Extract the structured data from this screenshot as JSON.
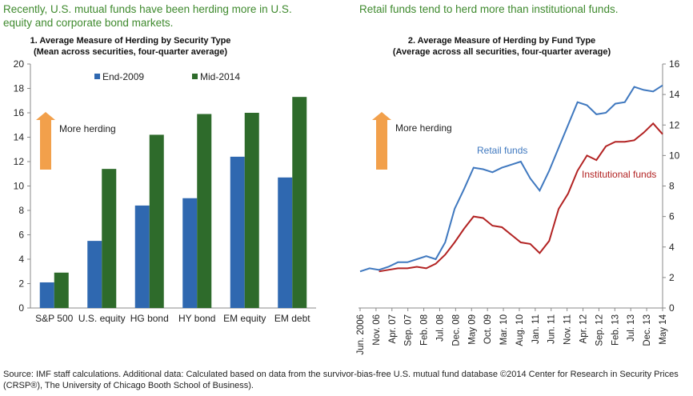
{
  "left_headline": "Recently, U.S. mutual funds have been herding more in U.S. equity and corporate bond markets.",
  "right_headline": "Retail funds tend to herd more than institutional funds.",
  "footer": "Source: IMF staff calculations. Additional data: Calculated based on data from the survivor-bias-free U.S. mutual fund database ©2014 Center for Research in Security Prices (CRSP®), The University of Chicago Booth School of Business).",
  "colors": {
    "end2009": "#2f68b0",
    "mid2014": "#2e6b2b",
    "retail": "#3f78bf",
    "institutional": "#b22222",
    "arrow": "#f2a04b",
    "headline": "#3f8a2e"
  },
  "chart_data": [
    {
      "type": "bar",
      "title": "1. Average Measure of Herding by Security Type",
      "subtitle": "(Mean across securities, four-quarter average)",
      "categories": [
        "S&P 500",
        "U.S. equity",
        "HG bond",
        "HY bond",
        "EM equity",
        "EM debt"
      ],
      "series": [
        {
          "name": "End-2009",
          "values": [
            2.1,
            5.5,
            8.4,
            9.0,
            12.4,
            10.7
          ]
        },
        {
          "name": "Mid-2014",
          "values": [
            2.9,
            11.4,
            14.2,
            15.9,
            16.0,
            17.3
          ]
        }
      ],
      "yticks": [
        "0",
        "2",
        "4",
        "6",
        "8",
        "10",
        "12",
        "14",
        "16",
        "18",
        "20"
      ],
      "ylim": [
        0,
        20
      ],
      "annotation": "More herding",
      "xlabel": "",
      "ylabel": ""
    },
    {
      "type": "line",
      "title": "2. Average Measure of Herding by Fund Type",
      "subtitle": "(Average across all securities, four-quarter average)",
      "x_ticks": [
        "Jun. 2006",
        "Nov. 06",
        "Apr. 07",
        "Sep. 07",
        "Feb. 08",
        "Jul. 08",
        "Dec. 08",
        "May 09",
        "Oct. 09",
        "Mar. 10",
        "Aug. 10",
        "Jan. 11",
        "Jun. 11",
        "Nov. 11",
        "Apr. 12",
        "Sep. 12",
        "Feb. 13",
        "Jul. 13",
        "Dec. 13",
        "May 14"
      ],
      "series": [
        {
          "name": "Retail funds",
          "values": [
            2.4,
            2.6,
            2.5,
            2.7,
            3.0,
            3.0,
            3.2,
            3.4,
            3.2,
            4.3,
            6.5,
            7.8,
            9.2,
            9.1,
            8.9,
            9.2,
            9.4,
            9.6,
            8.5,
            7.7,
            9.0,
            10.5,
            12.0,
            13.5,
            13.3,
            12.7,
            12.8,
            13.4,
            13.5,
            14.5,
            14.3,
            14.2,
            14.6
          ]
        },
        {
          "name": "Institutional funds",
          "values": [
            null,
            null,
            2.4,
            2.5,
            2.6,
            2.6,
            2.7,
            2.6,
            2.9,
            3.5,
            4.3,
            5.2,
            6.0,
            5.9,
            5.4,
            5.3,
            4.8,
            4.3,
            4.2,
            3.6,
            4.4,
            6.5,
            7.5,
            9.0,
            10.0,
            9.7,
            10.6,
            10.9,
            10.9,
            11.0,
            11.5,
            12.1,
            11.4
          ]
        }
      ],
      "yticks": [
        "0",
        "2",
        "4",
        "6",
        "8",
        "10",
        "12",
        "14",
        "16"
      ],
      "ylim": [
        0,
        16
      ],
      "annotation": "More herding",
      "xlabel": "",
      "ylabel": ""
    }
  ]
}
